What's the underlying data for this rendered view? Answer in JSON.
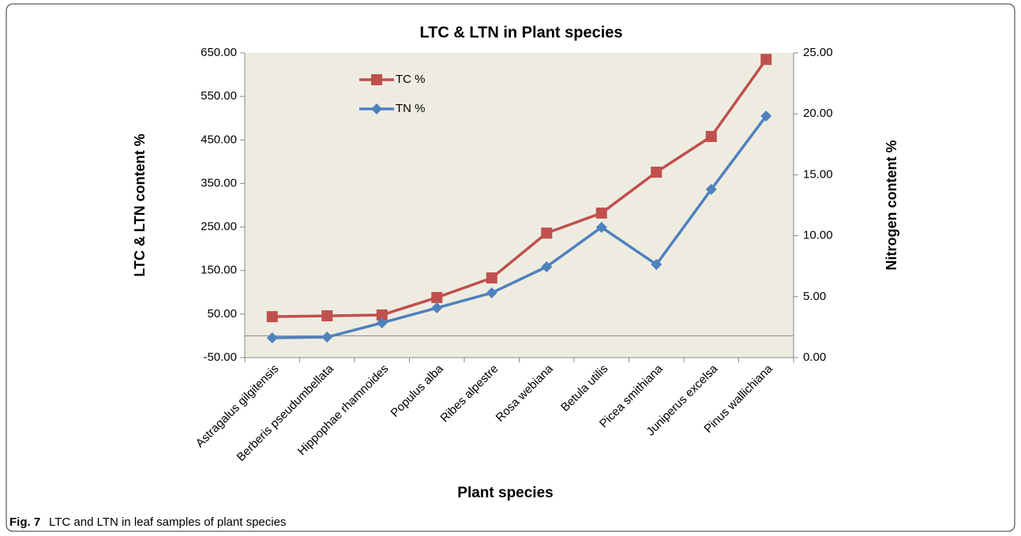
{
  "chart_data": {
    "type": "line",
    "title": "LTC & LTN in Plant species",
    "xlabel": "Plant species",
    "ylabel": "LTC & LTN  content %",
    "y2label": "Nitrogen content %",
    "categories": [
      "Astragalus gilgitensis",
      "Berberis pseudumbellata",
      "Hippophae rhamnoides",
      "Populus alba",
      "Ribes alpestre",
      "Rosa webiana",
      "Betula utilis",
      "Picea smithiana",
      "Juniperus excelsa",
      "Pinus wallichiana"
    ],
    "series": [
      {
        "name": "TC %",
        "color": "#c0504d",
        "marker": "square",
        "values": [
          44,
          46,
          48,
          88,
          133,
          236,
          282,
          376,
          458,
          635
        ]
      },
      {
        "name": "TN %",
        "color": "#4f81bd",
        "marker": "diamond",
        "axis": "y2",
        "values": [
          1.62,
          1.68,
          2.85,
          4.08,
          5.31,
          7.45,
          10.69,
          7.64,
          13.8,
          19.82
        ]
      }
    ],
    "ylim": [
      -50,
      650
    ],
    "yticks": [
      {
        "value": -50,
        "label": "-50.00"
      },
      {
        "value": 50,
        "label": "50.00"
      },
      {
        "value": 150,
        "label": "150.00"
      },
      {
        "value": 250,
        "label": "250.00"
      },
      {
        "value": 350,
        "label": "350.00"
      },
      {
        "value": 450,
        "label": "450.00"
      },
      {
        "value": 550,
        "label": "550.00"
      },
      {
        "value": 650,
        "label": "650.00"
      }
    ],
    "y2lim": [
      0,
      25
    ],
    "y2ticks": [
      {
        "value": 0,
        "label": "0.00"
      },
      {
        "value": 5,
        "label": "5.00"
      },
      {
        "value": 10,
        "label": "10.00"
      },
      {
        "value": 15,
        "label": "15.00"
      },
      {
        "value": 20,
        "label": "20.00"
      },
      {
        "value": 25,
        "label": "25.00"
      }
    ],
    "legend": "upper left",
    "background": "#eeece1"
  },
  "caption": {
    "label": "Fig. 7",
    "text": "LTC and LTN in leaf samples of plant species"
  }
}
